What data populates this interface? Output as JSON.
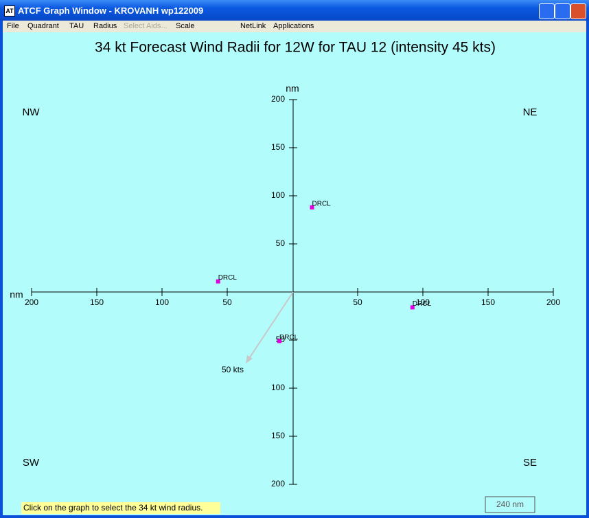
{
  "window": {
    "title": "ATCF Graph Window - KROVANH wp122009",
    "menu": [
      "File",
      "Quadrant",
      "TAU",
      "Radius",
      "Select Aids...",
      "Scale",
      "NetLink",
      "Applications"
    ]
  },
  "chart_data": {
    "type": "scatter",
    "title": "34 kt Forecast Wind Radii for 12W for TAU 12 (intensity 45 kts)",
    "x_label": "nm",
    "y_label": "nm",
    "quadrants": [
      "NW",
      "NE",
      "SW",
      "SE"
    ],
    "xlim": [
      -200,
      200
    ],
    "ylim": [
      -200,
      200
    ],
    "xticks": [
      {
        "value": -200,
        "label": "200"
      },
      {
        "value": -150,
        "label": "150"
      },
      {
        "value": -100,
        "label": "100"
      },
      {
        "value": -50,
        "label": "50"
      },
      50,
      100,
      150,
      200
    ],
    "yticks": [
      200,
      150,
      100,
      50,
      {
        "value": -50,
        "label": "50"
      },
      {
        "value": -100,
        "label": "100"
      },
      {
        "value": -150,
        "label": "150"
      },
      {
        "value": -200,
        "label": "200"
      }
    ],
    "series": [
      {
        "name": "DRCL",
        "color": "#e000e0",
        "x": [
          15,
          -57,
          92,
          -10
        ],
        "values": [
          88,
          11,
          -16,
          -51
        ]
      }
    ],
    "annotation": "50 kts"
  },
  "status": {
    "hint": "Click on the graph to select the 34 kt wind radius.",
    "scale": "240 nm"
  }
}
